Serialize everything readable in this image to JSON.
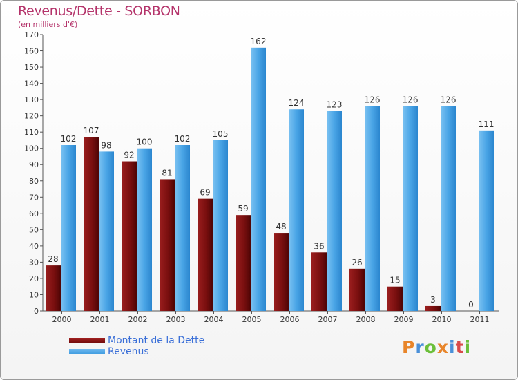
{
  "title": "Revenus/Dette - SORBON",
  "subtitle": "(en milliers d'€)",
  "legend": {
    "debt_label": "Montant de la Dette",
    "revenue_label": "Revenus"
  },
  "logo": {
    "text": "Proxiti"
  },
  "colors": {
    "title": "#b4336a",
    "debt": "#6e0a0a",
    "revenue": "#3d9be0",
    "legend_text": "#3a6fd8",
    "logo": [
      "#e8852a",
      "#4a90d9",
      "#6bbf3a",
      "#e8852a",
      "#4a90d9",
      "#d94a4a",
      "#6bbf3a"
    ]
  },
  "chart_data": {
    "type": "bar",
    "categories": [
      "2000",
      "2001",
      "2002",
      "2003",
      "2004",
      "2005",
      "2006",
      "2007",
      "2008",
      "2009",
      "2010",
      "2011"
    ],
    "series": [
      {
        "name": "Montant de la Dette",
        "values": [
          28,
          107,
          92,
          81,
          69,
          59,
          48,
          36,
          26,
          15,
          3,
          0
        ]
      },
      {
        "name": "Revenus",
        "values": [
          102,
          98,
          100,
          102,
          105,
          162,
          124,
          123,
          126,
          126,
          126,
          111
        ]
      }
    ],
    "ylim": [
      0,
      170
    ],
    "ytick_step": 10,
    "grid": false
  }
}
